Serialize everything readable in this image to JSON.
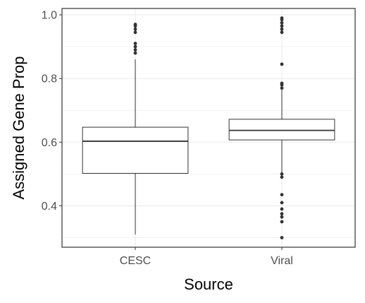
{
  "chart_data": {
    "type": "boxplot",
    "xlabel": "Source",
    "ylabel": "Assigned Gene Prop",
    "ylim": [
      0.27,
      1.02
    ],
    "y_ticks": [
      0.4,
      0.6,
      0.8,
      1.0
    ],
    "y_tick_labels": [
      "0.4",
      "0.6",
      "0.8",
      "1.0"
    ],
    "categories": [
      "CESC",
      "Viral"
    ],
    "grid": true,
    "legend": "none",
    "boxes": [
      {
        "category": "CESC",
        "whisker_low": 0.31,
        "q1": 0.502,
        "median": 0.603,
        "q3": 0.647,
        "whisker_high": 0.86,
        "outliers": [
          0.88,
          0.89,
          0.9,
          0.91,
          0.945,
          0.955,
          0.965,
          0.97
        ]
      },
      {
        "category": "Viral",
        "whisker_low": 0.505,
        "q1": 0.607,
        "median": 0.637,
        "q3": 0.672,
        "whisker_high": 0.77,
        "outliers": [
          0.3,
          0.35,
          0.365,
          0.375,
          0.39,
          0.41,
          0.435,
          0.49,
          0.5,
          0.77,
          0.78,
          0.785,
          0.845,
          0.945,
          0.955,
          0.965,
          0.975,
          0.985,
          0.99
        ]
      }
    ],
    "colors": {
      "box_fill": "#ffffff",
      "box_stroke": "#333333",
      "outlier": "#333333",
      "grid": "#ebebeb",
      "panel_border": "#333333",
      "tick_label": "#4d4d4d",
      "axis_title": "#000000"
    }
  }
}
